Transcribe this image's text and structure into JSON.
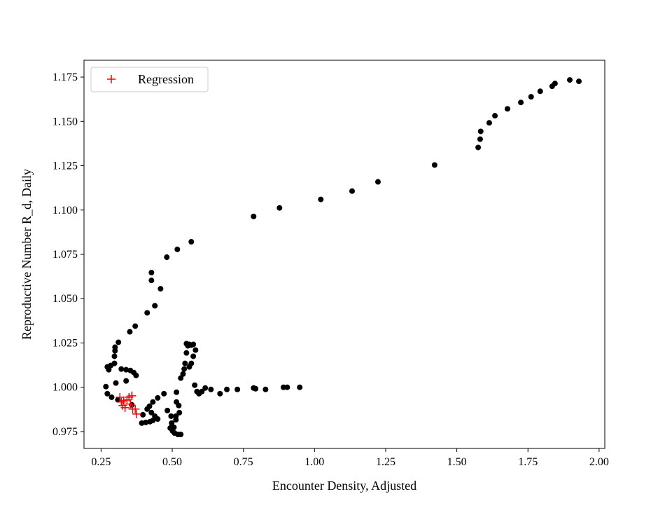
{
  "chart_data": {
    "type": "scatter",
    "title": "",
    "xlabel": "Encounter Density, Adjusted",
    "ylabel": "Reproductive Number R_d, Daily",
    "xlim": [
      0.19,
      2.02
    ],
    "ylim": [
      0.9655,
      1.1845
    ],
    "xticks": [
      "0.25",
      "0.50",
      "0.75",
      "1.00",
      "1.25",
      "1.50",
      "1.75",
      "2.00"
    ],
    "yticks": [
      "0.975",
      "1.000",
      "1.025",
      "1.050",
      "1.075",
      "1.100",
      "1.125",
      "1.150",
      "1.175"
    ],
    "grid": false,
    "legend": {
      "placement": "top-left",
      "entries": [
        "Regression"
      ]
    },
    "series": [
      {
        "color": "#000000",
        "marker": "circle",
        "points": [
          [
            1.929,
            1.1726
          ],
          [
            1.897,
            1.1734
          ],
          [
            1.845,
            1.1714
          ],
          [
            1.835,
            1.1698
          ],
          [
            1.793,
            1.167
          ],
          [
            1.761,
            1.1639
          ],
          [
            1.725,
            1.1607
          ],
          [
            1.678,
            1.1571
          ],
          [
            1.634,
            1.1532
          ],
          [
            1.614,
            1.1492
          ],
          [
            1.584,
            1.1444
          ],
          [
            1.582,
            1.14
          ],
          [
            1.575,
            1.1353
          ],
          [
            1.422,
            1.1254
          ],
          [
            1.223,
            1.1159
          ],
          [
            1.132,
            1.1107
          ],
          [
            1.022,
            1.106
          ],
          [
            0.877,
            1.1012
          ],
          [
            0.786,
            1.0964
          ],
          [
            0.567,
            1.0821
          ],
          [
            0.518,
            1.0778
          ],
          [
            0.481,
            1.0734
          ],
          [
            0.459,
            1.0556
          ],
          [
            0.427,
            1.0603
          ],
          [
            0.427,
            1.0647
          ],
          [
            0.439,
            1.046
          ],
          [
            0.412,
            1.042
          ],
          [
            0.37,
            1.0345
          ],
          [
            0.351,
            1.0313
          ],
          [
            0.311,
            1.0254
          ],
          [
            0.299,
            1.0226
          ],
          [
            0.299,
            1.0206
          ],
          [
            0.297,
            1.0175
          ],
          [
            0.297,
            1.0135
          ],
          [
            0.284,
            1.0123
          ],
          [
            0.272,
            1.0115
          ],
          [
            0.277,
            1.0099
          ],
          [
            0.321,
            1.0103
          ],
          [
            0.338,
            1.0099
          ],
          [
            0.353,
            1.0095
          ],
          [
            0.365,
            1.0083
          ],
          [
            0.373,
            1.0067
          ],
          [
            0.338,
            1.0036
          ],
          [
            0.302,
            1.0024
          ],
          [
            0.267,
            1.0004
          ],
          [
            0.272,
            0.9964
          ],
          [
            0.287,
            0.9944
          ],
          [
            0.309,
            0.9929
          ],
          [
            0.358,
            0.9901
          ],
          [
            0.397,
            0.9845
          ],
          [
            0.393,
            0.9798
          ],
          [
            0.407,
            0.9802
          ],
          [
            0.422,
            0.9806
          ],
          [
            0.432,
            0.9813
          ],
          [
            0.412,
            0.9877
          ],
          [
            0.42,
            0.9893
          ],
          [
            0.427,
            0.9857
          ],
          [
            0.439,
            0.9837
          ],
          [
            0.449,
            0.9821
          ],
          [
            0.432,
            0.9917
          ],
          [
            0.449,
            0.994
          ],
          [
            0.471,
            0.9964
          ],
          [
            0.483,
            0.9869
          ],
          [
            0.496,
            0.9837
          ],
          [
            0.498,
            0.9798
          ],
          [
            0.493,
            0.977
          ],
          [
            0.501,
            0.9754
          ],
          [
            0.508,
            0.9742
          ],
          [
            0.52,
            0.9734
          ],
          [
            0.53,
            0.9734
          ],
          [
            0.506,
            0.9774
          ],
          [
            0.513,
            0.9817
          ],
          [
            0.513,
            0.9837
          ],
          [
            0.525,
            0.9857
          ],
          [
            0.523,
            0.9897
          ],
          [
            0.515,
            0.9917
          ],
          [
            0.515,
            0.9972
          ],
          [
            0.53,
            1.0052
          ],
          [
            0.538,
            1.0075
          ],
          [
            0.542,
            1.0103
          ],
          [
            0.545,
            1.0135
          ],
          [
            0.55,
            1.0194
          ],
          [
            0.555,
            1.0234
          ],
          [
            0.55,
            1.0246
          ],
          [
            0.56,
            1.0242
          ],
          [
            0.567,
            1.0238
          ],
          [
            0.574,
            1.0242
          ],
          [
            0.582,
            1.021
          ],
          [
            0.574,
            1.0175
          ],
          [
            0.567,
            1.0135
          ],
          [
            0.56,
            1.0115
          ],
          [
            0.579,
            1.0012
          ],
          [
            0.587,
            0.9976
          ],
          [
            0.594,
            0.9964
          ],
          [
            0.604,
            0.9976
          ],
          [
            0.616,
            0.9996
          ],
          [
            0.636,
            0.9988
          ],
          [
            0.668,
            0.9964
          ],
          [
            0.692,
            0.9988
          ],
          [
            0.729,
            0.9988
          ],
          [
            0.786,
            0.9996
          ],
          [
            0.793,
            0.9992
          ],
          [
            0.828,
            0.9988
          ],
          [
            0.891,
            1.0
          ],
          [
            0.904,
            1.0
          ],
          [
            0.948,
            1.0
          ]
        ]
      },
      {
        "name": "Regression",
        "color": "#ff0000",
        "marker": "plus",
        "points": [
          [
            0.316,
            0.9944
          ],
          [
            0.329,
            0.9925
          ],
          [
            0.326,
            0.9897
          ],
          [
            0.334,
            0.9885
          ],
          [
            0.341,
            0.9929
          ],
          [
            0.348,
            0.9944
          ],
          [
            0.358,
            0.9952
          ],
          [
            0.353,
            0.9905
          ],
          [
            0.361,
            0.9877
          ],
          [
            0.37,
            0.9877
          ],
          [
            0.375,
            0.9849
          ],
          [
            0.321,
            0.9917
          ]
        ]
      }
    ]
  }
}
